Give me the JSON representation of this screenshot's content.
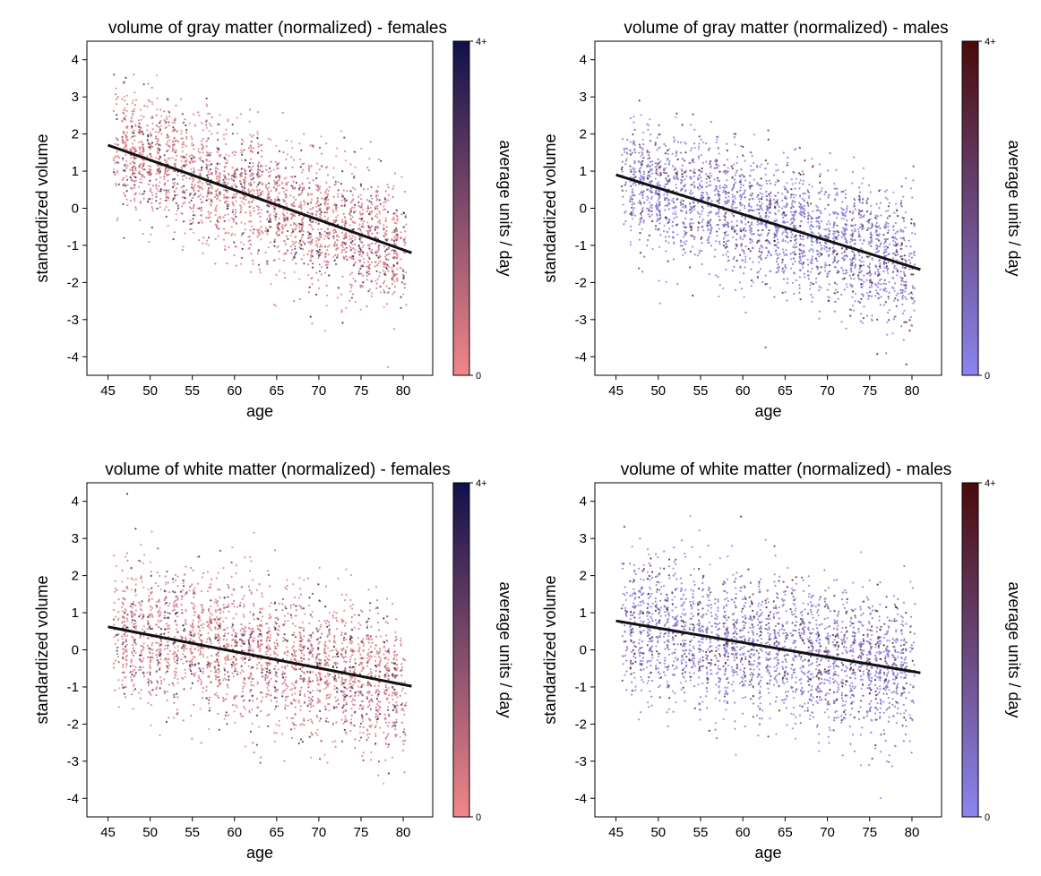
{
  "chart_data": [
    {
      "type": "scatter",
      "title": "volume of gray matter (normalized) - females",
      "xlabel": "age",
      "ylabel": "standardized volume",
      "xlim": [
        42.5,
        83.5
      ],
      "ylim": [
        -4.5,
        4.5
      ],
      "xticks": [
        45,
        50,
        55,
        60,
        65,
        70,
        75,
        80
      ],
      "yticks": [
        -4,
        -3,
        -2,
        -1,
        0,
        1,
        2,
        3,
        4
      ],
      "trend": {
        "x": [
          45,
          81
        ],
        "y": [
          1.7,
          -1.2
        ]
      },
      "spread": {
        "center_std": 0.85,
        "outlier_range": [
          -4.4,
          3.6
        ]
      },
      "colorbar": {
        "label": "average units / day",
        "min_label": "0",
        "max_label": "4+",
        "low_color": "#f2868a",
        "high_color": "#10104a"
      },
      "grid": false
    },
    {
      "type": "scatter",
      "title": "volume of gray matter (normalized) - males",
      "xlabel": "age",
      "ylabel": "standardized volume",
      "xlim": [
        42.5,
        83.5
      ],
      "ylim": [
        -4.5,
        4.5
      ],
      "xticks": [
        45,
        50,
        55,
        60,
        65,
        70,
        75,
        80
      ],
      "yticks": [
        -4,
        -3,
        -2,
        -1,
        0,
        1,
        2,
        3,
        4
      ],
      "trend": {
        "x": [
          45,
          81
        ],
        "y": [
          0.9,
          -1.65
        ]
      },
      "spread": {
        "center_std": 0.85,
        "outlier_range": [
          -4.3,
          2.9
        ]
      },
      "colorbar": {
        "label": "average units / day",
        "min_label": "0",
        "max_label": "4+",
        "low_color": "#8a85f0",
        "high_color": "#4a0a0a"
      },
      "grid": false
    },
    {
      "type": "scatter",
      "title": "volume of white matter (normalized) - females",
      "xlabel": "age",
      "ylabel": "standardized volume",
      "xlim": [
        42.5,
        83.5
      ],
      "ylim": [
        -4.5,
        4.5
      ],
      "xticks": [
        45,
        50,
        55,
        60,
        65,
        70,
        75,
        80
      ],
      "yticks": [
        -4,
        -3,
        -2,
        -1,
        0,
        1,
        2,
        3,
        4
      ],
      "trend": {
        "x": [
          45,
          81
        ],
        "y": [
          0.62,
          -0.98
        ]
      },
      "spread": {
        "center_std": 0.95,
        "outlier_range": [
          -3.6,
          4.2
        ]
      },
      "colorbar": {
        "label": "average units / day",
        "min_label": "0",
        "max_label": "4+",
        "low_color": "#f2868a",
        "high_color": "#10104a"
      },
      "grid": false
    },
    {
      "type": "scatter",
      "title": "volume of white matter (normalized) - males",
      "xlabel": "age",
      "ylabel": "standardized volume",
      "xlim": [
        42.5,
        83.5
      ],
      "ylim": [
        -4.5,
        4.5
      ],
      "xticks": [
        45,
        50,
        55,
        60,
        65,
        70,
        75,
        80
      ],
      "yticks": [
        -4,
        -3,
        -2,
        -1,
        0,
        1,
        2,
        3,
        4
      ],
      "trend": {
        "x": [
          45,
          81
        ],
        "y": [
          0.78,
          -0.62
        ]
      },
      "spread": {
        "center_std": 0.95,
        "outlier_range": [
          -4.0,
          4.2
        ]
      },
      "colorbar": {
        "label": "average units / day",
        "min_label": "0",
        "max_label": "4+",
        "low_color": "#8a85f0",
        "high_color": "#4a0a0a"
      },
      "grid": false
    }
  ]
}
